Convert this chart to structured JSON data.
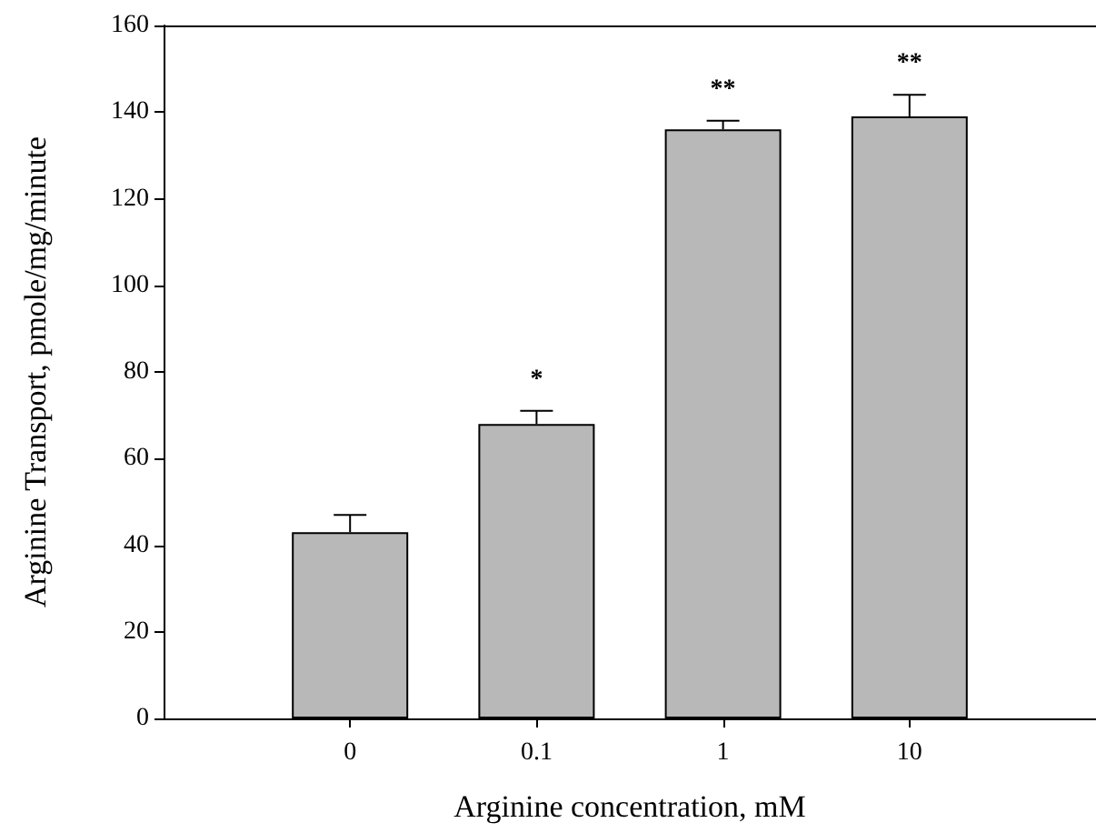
{
  "chart_data": {
    "type": "bar",
    "xlabel": "Arginine concentration, mM",
    "ylabel": "Arginine Transport, pmole/mg/minute",
    "categories": [
      "0",
      "0.1",
      "1",
      "10"
    ],
    "values": [
      43,
      68,
      136,
      139
    ],
    "errors": [
      4,
      3,
      2,
      5
    ],
    "color": "#b8b8b8",
    "ylim": [
      0,
      160
    ],
    "yticks": [
      0,
      20,
      40,
      60,
      80,
      100,
      120,
      140,
      160
    ],
    "grid": false,
    "annotations": [
      {
        "text": "*",
        "x": "0.1",
        "y": 71
      },
      {
        "text": "**",
        "x": "1",
        "y": 138
      },
      {
        "text": "**",
        "x": "10",
        "y": 144
      }
    ]
  }
}
